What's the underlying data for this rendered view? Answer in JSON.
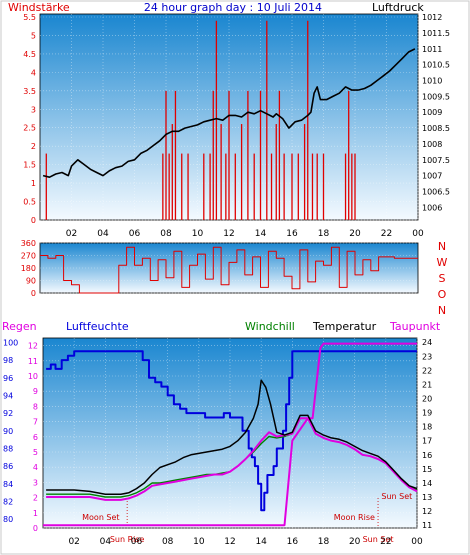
{
  "page": {
    "title": "24 hour graph day : 10 Juli 2014"
  },
  "colors": {
    "wind": "#e00000",
    "pressure": "#000000",
    "humidity": "#0000dd",
    "windchill": "#008000",
    "temperature": "#000000",
    "dewpoint": "#e000e0",
    "rain": "#e000e0",
    "plot_top": "#1a86d0",
    "plot_bottom": "#f4faff"
  },
  "chart_data": [
    {
      "type": "line",
      "title": "24 hour graph day : 10 Juli 2014",
      "left_axis_label": "Windstärke",
      "right_axis_label": "Luftdruck",
      "ylim_left": [
        0,
        5.5
      ],
      "yticks_left": [
        "0",
        "0.5",
        "1",
        "1.5",
        "2",
        "2.5",
        "3",
        "3.5",
        "4",
        "4.5",
        "5",
        "5.5"
      ],
      "ylim_right": [
        1005.6,
        1012.1
      ],
      "yticks_right": [
        "1006",
        "1006.5",
        "1007",
        "1007.5",
        "1008",
        "1008.5",
        "1009",
        "1009.5",
        "1010",
        "1010.5",
        "1011",
        "1011.5",
        "1012"
      ],
      "xlim": [
        0,
        24
      ],
      "xticks": [
        "02",
        "04",
        "06",
        "08",
        "10",
        "12",
        "14",
        "16",
        "18",
        "20",
        "22",
        "00"
      ],
      "series": [
        {
          "name": "Luftdruck",
          "axis": "right",
          "x": [
            0.2,
            0.6,
            1.0,
            1.4,
            1.8,
            2.0,
            2.4,
            2.8,
            3.2,
            3.6,
            4.0,
            4.4,
            4.8,
            5.2,
            5.6,
            6.0,
            6.4,
            6.8,
            7.2,
            7.6,
            8.0,
            8.4,
            8.8,
            9.2,
            9.6,
            10.0,
            10.4,
            10.8,
            11.2,
            11.6,
            12.0,
            12.4,
            12.8,
            13.2,
            13.6,
            14.0,
            14.4,
            14.8,
            15.0,
            15.4,
            15.8,
            16.2,
            16.6,
            17.0,
            17.2,
            17.4,
            17.6,
            17.8,
            18.2,
            18.6,
            19.0,
            19.4,
            19.8,
            20.2,
            20.6,
            21.0,
            21.4,
            21.8,
            22.2,
            22.6,
            23.0,
            23.4,
            23.8
          ],
          "values": [
            1007.0,
            1006.95,
            1007.05,
            1007.1,
            1007.0,
            1007.3,
            1007.5,
            1007.35,
            1007.2,
            1007.1,
            1007.0,
            1007.15,
            1007.25,
            1007.3,
            1007.45,
            1007.5,
            1007.7,
            1007.8,
            1007.95,
            1008.1,
            1008.3,
            1008.4,
            1008.4,
            1008.5,
            1008.55,
            1008.6,
            1008.7,
            1008.75,
            1008.8,
            1008.75,
            1008.9,
            1008.9,
            1008.85,
            1009.0,
            1008.95,
            1009.05,
            1008.95,
            1008.85,
            1008.95,
            1008.8,
            1008.5,
            1008.7,
            1008.75,
            1008.9,
            1009.0,
            1009.6,
            1009.8,
            1009.4,
            1009.4,
            1009.5,
            1009.6,
            1009.8,
            1009.7,
            1009.7,
            1009.75,
            1009.85,
            1010.0,
            1010.15,
            1010.3,
            1010.5,
            1010.7,
            1010.9,
            1011.0
          ]
        },
        {
          "name": "Windstärke",
          "axis": "left",
          "x": [
            0.4,
            7.8,
            8.0,
            8.2,
            8.4,
            8.6,
            9.0,
            9.4,
            10.4,
            10.8,
            11.0,
            11.2,
            11.5,
            11.8,
            12.0,
            12.4,
            12.8,
            13.2,
            13.6,
            14.0,
            14.4,
            14.7,
            15.0,
            15.2,
            15.5,
            16.0,
            16.4,
            16.8,
            17.0,
            17.3,
            17.6,
            18.0,
            19.4,
            19.6,
            19.8,
            20.0
          ],
          "values": [
            1.8,
            1.8,
            3.5,
            1.8,
            2.6,
            3.5,
            1.8,
            1.8,
            1.8,
            1.8,
            3.5,
            5.4,
            2.6,
            1.8,
            3.5,
            1.8,
            2.6,
            3.5,
            1.8,
            3.5,
            5.4,
            1.8,
            2.6,
            3.5,
            1.8,
            1.8,
            1.8,
            2.6,
            5.4,
            1.8,
            1.8,
            1.8,
            1.8,
            3.5,
            1.8,
            1.8
          ]
        }
      ]
    },
    {
      "type": "line",
      "right_axis_label": [
        "N",
        "W",
        "S",
        "O",
        "N"
      ],
      "ylim": [
        0,
        360
      ],
      "yticks": [
        "0",
        "90",
        "180",
        "270",
        "360"
      ],
      "xlim": [
        0,
        24
      ],
      "series": [
        {
          "name": "Windrichtung",
          "x": [
            0.0,
            0.5,
            1.0,
            1.5,
            2.0,
            2.5,
            3.0,
            3.5,
            4.0,
            4.5,
            5.0,
            5.5,
            6.0,
            6.5,
            7.0,
            7.5,
            8.0,
            8.5,
            9.0,
            9.5,
            10.0,
            10.5,
            11.0,
            11.5,
            12.0,
            12.5,
            13.0,
            13.5,
            14.0,
            14.5,
            15.0,
            15.5,
            16.0,
            16.5,
            17.0,
            17.5,
            18.0,
            18.5,
            19.0,
            19.5,
            20.0,
            20.5,
            21.0,
            21.5,
            22.0,
            22.5,
            23.0,
            23.5,
            24.0
          ],
          "values": [
            270,
            250,
            270,
            90,
            60,
            0,
            0,
            0,
            0,
            0,
            200,
            330,
            200,
            250,
            90,
            240,
            110,
            300,
            40,
            200,
            280,
            100,
            330,
            60,
            220,
            310,
            130,
            260,
            40,
            300,
            250,
            120,
            30,
            310,
            80,
            230,
            200,
            330,
            40,
            300,
            130,
            240,
            160,
            260,
            260,
            250,
            250,
            250,
            250
          ]
        }
      ]
    },
    {
      "type": "line",
      "legend": [
        "Regen",
        "Luftfeuchte",
        "Windchill",
        "Temperatur",
        "Taupunkt"
      ],
      "ylim_left": [
        79,
        100.5
      ],
      "yticks_left": [
        "80",
        "82",
        "84",
        "86",
        "88",
        "90",
        "92",
        "94",
        "96",
        "98",
        "100"
      ],
      "ylim_mid": [
        0,
        12.5
      ],
      "yticks_mid": [
        "0",
        "1",
        "2",
        "3",
        "4",
        "5",
        "6",
        "7",
        "8",
        "9",
        "10",
        "11",
        "12"
      ],
      "ylim_right": [
        10.8,
        24.3
      ],
      "yticks_right": [
        "11",
        "12",
        "13",
        "14",
        "15",
        "16",
        "17",
        "18",
        "19",
        "20",
        "21",
        "22",
        "23",
        "24"
      ],
      "xlim": [
        0,
        24
      ],
      "xticks": [
        "02",
        "04",
        "06",
        "08",
        "10",
        "12",
        "14",
        "16",
        "18",
        "20",
        "22",
        "00"
      ],
      "annotations": [
        {
          "text": "Moon Set",
          "x": 5.3
        },
        {
          "text": "Moon Rise",
          "x": 22.2
        },
        {
          "text": "Sun Set",
          "x": 23.7
        },
        {
          "text": "Sun Rise",
          "x": 5.4
        },
        {
          "text": "Sun Set",
          "x": 21.5
        }
      ],
      "series": [
        {
          "name": "Luftfeuchte",
          "axis": "left",
          "x": [
            0.2,
            0.5,
            0.8,
            1.2,
            1.6,
            2.0,
            4.0,
            6.0,
            6.4,
            6.8,
            7.2,
            7.6,
            8.0,
            8.4,
            8.8,
            9.2,
            9.6,
            10.0,
            10.4,
            11.0,
            11.6,
            12.0,
            12.4,
            12.8,
            13.0,
            13.2,
            13.4,
            13.6,
            13.8,
            14.0,
            14.2,
            14.4,
            14.8,
            15.0,
            15.4,
            15.6,
            15.8,
            16.0,
            24.0
          ],
          "values": [
            97,
            97.5,
            97,
            98,
            98.5,
            99,
            99,
            99,
            98,
            96,
            95.5,
            95,
            94,
            93,
            92.5,
            92,
            92,
            92,
            91.5,
            91.5,
            92,
            91.5,
            91.5,
            90,
            90,
            88,
            87,
            86,
            84,
            81,
            83,
            85,
            86,
            88,
            90,
            93,
            96,
            99,
            99
          ]
        },
        {
          "name": "Windchill",
          "axis": "right",
          "x": [
            0.2,
            1.0,
            2.0,
            3.0,
            4.0,
            5.0,
            5.5,
            6.0,
            6.5,
            7.0,
            7.5,
            8.0,
            8.5,
            9.0,
            9.5,
            10.0,
            10.5,
            11.0,
            11.5,
            12.0,
            12.5,
            13.0,
            13.5,
            14.0,
            14.5,
            15.0,
            15.5,
            16.0,
            16.5,
            17.0,
            17.5,
            18.0,
            18.5,
            19.0,
            19.5,
            20.0,
            20.5,
            21.0,
            21.5,
            22.0,
            22.5,
            23.0,
            23.5,
            24.0
          ],
          "values": [
            13.2,
            13.2,
            13.2,
            13.2,
            13.0,
            13.0,
            13.1,
            13.3,
            13.6,
            14.0,
            14.0,
            14.1,
            14.2,
            14.3,
            14.4,
            14.5,
            14.6,
            14.6,
            14.7,
            14.8,
            15.2,
            15.7,
            16.2,
            16.8,
            17.3,
            17.2,
            17.3,
            17.5,
            18.6,
            18.6,
            17.5,
            17.2,
            17.0,
            16.9,
            16.7,
            16.4,
            16.0,
            15.9,
            15.7,
            15.4,
            14.8,
            14.2,
            13.7,
            13.5
          ]
        },
        {
          "name": "Temperatur",
          "axis": "right",
          "x": [
            0.2,
            1.0,
            2.0,
            3.0,
            4.0,
            5.0,
            5.5,
            6.0,
            6.5,
            7.0,
            7.5,
            8.0,
            8.5,
            9.0,
            9.5,
            10.0,
            10.5,
            11.0,
            11.5,
            12.0,
            12.5,
            13.0,
            13.5,
            13.8,
            14.0,
            14.3,
            14.6,
            15.0,
            15.5,
            16.0,
            16.5,
            17.0,
            17.5,
            18.0,
            18.5,
            19.0,
            19.5,
            20.0,
            20.5,
            21.0,
            21.5,
            22.0,
            22.5,
            23.0,
            23.5,
            24.0
          ],
          "values": [
            13.5,
            13.5,
            13.5,
            13.4,
            13.2,
            13.2,
            13.3,
            13.6,
            14.0,
            14.6,
            15.1,
            15.3,
            15.5,
            15.8,
            16.0,
            16.1,
            16.2,
            16.3,
            16.4,
            16.6,
            17.0,
            17.6,
            18.6,
            19.6,
            21.3,
            20.8,
            19.6,
            17.6,
            17.4,
            17.6,
            18.8,
            18.8,
            17.7,
            17.4,
            17.2,
            17.1,
            16.9,
            16.6,
            16.3,
            16.1,
            15.9,
            15.5,
            14.9,
            14.3,
            13.8,
            13.6
          ]
        },
        {
          "name": "Taupunkt",
          "axis": "right",
          "x": [
            0.2,
            1.0,
            2.0,
            3.0,
            4.0,
            5.0,
            5.5,
            6.0,
            6.5,
            7.0,
            7.5,
            8.0,
            8.5,
            9.0,
            9.5,
            10.0,
            10.5,
            11.0,
            11.5,
            12.0,
            12.5,
            13.0,
            13.5,
            14.0,
            14.5,
            15.0,
            15.5,
            16.0,
            16.5,
            17.0,
            17.5,
            18.0,
            18.5,
            19.0,
            19.5,
            20.0,
            20.5,
            21.0,
            21.5,
            22.0,
            22.5,
            23.0,
            23.5,
            24.0
          ],
          "values": [
            13.0,
            13.0,
            13.0,
            13.0,
            12.8,
            12.8,
            12.9,
            13.1,
            13.4,
            13.8,
            13.9,
            14.0,
            14.1,
            14.2,
            14.3,
            14.4,
            14.5,
            14.6,
            14.6,
            14.8,
            15.2,
            15.7,
            16.3,
            17.0,
            17.6,
            17.3,
            17.4,
            17.5,
            18.6,
            18.6,
            17.5,
            17.2,
            17.0,
            16.9,
            16.7,
            16.4,
            16.0,
            15.9,
            15.7,
            15.4,
            14.8,
            14.2,
            13.7,
            13.4
          ]
        },
        {
          "name": "Regen",
          "axis": "right",
          "x": [
            0.0,
            14.0,
            14.5,
            15.0,
            15.5,
            16.0,
            17.0,
            17.3,
            17.8,
            18.0,
            24.0
          ],
          "values": [
            11.0,
            11.0,
            11.0,
            11.0,
            11.0,
            17.0,
            18.6,
            18.6,
            23.6,
            23.9,
            23.9
          ]
        }
      ]
    }
  ]
}
